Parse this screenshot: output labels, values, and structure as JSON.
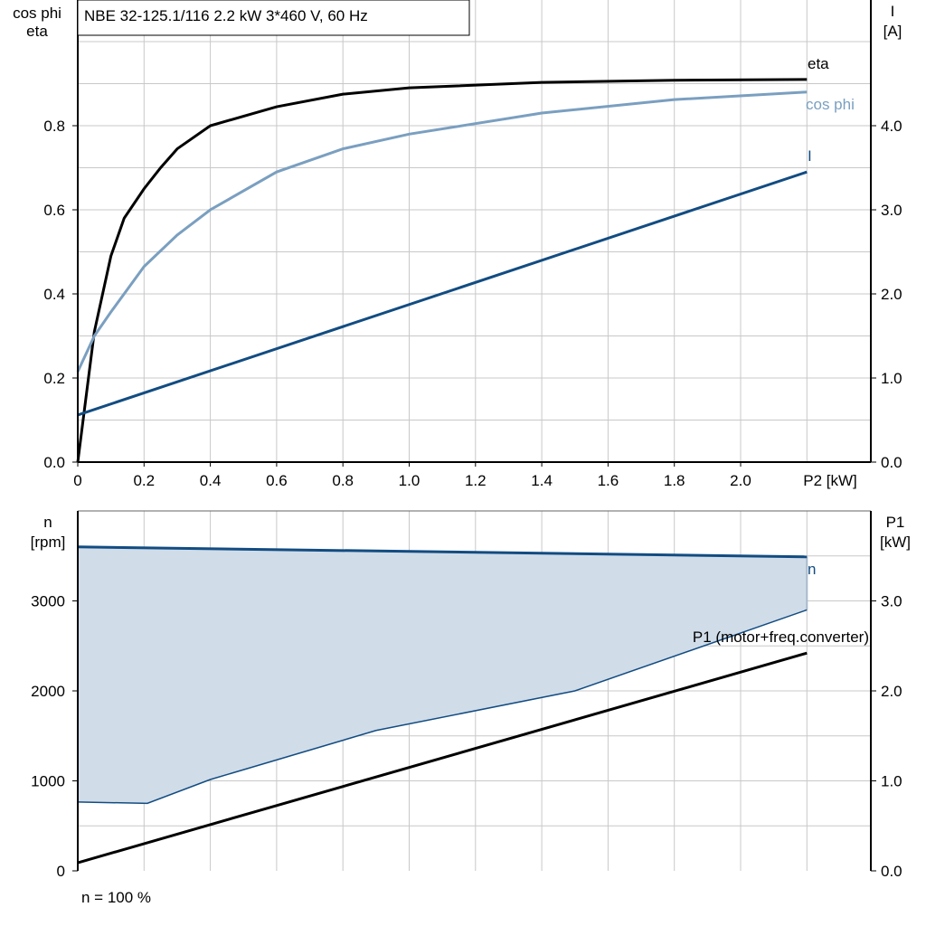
{
  "chart_data": [
    {
      "type": "line",
      "title": "NBE 32-125.1/116   2.2 kW   3*460 V, 60 Hz",
      "xlabel": "P2 [kW]",
      "ylabel_left": [
        "cos phi",
        "eta"
      ],
      "ylabel_right": [
        "I",
        "[A]"
      ],
      "xlim": [
        0,
        2.4
      ],
      "ylim_left": [
        0,
        1.1
      ],
      "ylim_right": [
        0,
        5.5
      ],
      "x_ticks": [
        "0",
        "0.2",
        "0.4",
        "0.6",
        "0.8",
        "1.0",
        "1.2",
        "1.4",
        "1.6",
        "1.8",
        "2.0"
      ],
      "y_ticks_left": [
        "0.0",
        "0.2",
        "0.4",
        "0.6",
        "0.8"
      ],
      "y_ticks_right": [
        "0.0",
        "1.0",
        "2.0",
        "3.0",
        "4.0"
      ],
      "grid": true,
      "series": [
        {
          "name": "eta",
          "axis": "left",
          "color": "#000000",
          "x": [
            0,
            0.05,
            0.1,
            0.14,
            0.2,
            0.25,
            0.3,
            0.4,
            0.6,
            0.8,
            1.0,
            1.4,
            1.8,
            2.2
          ],
          "y": [
            0,
            0.31,
            0.49,
            0.58,
            0.65,
            0.7,
            0.745,
            0.8,
            0.845,
            0.875,
            0.89,
            0.903,
            0.908,
            0.91
          ]
        },
        {
          "name": "cos phi",
          "axis": "left",
          "color": "#7a9fc0",
          "x": [
            0,
            0.05,
            0.1,
            0.2,
            0.3,
            0.4,
            0.6,
            0.8,
            1.0,
            1.4,
            1.8,
            2.2
          ],
          "y": [
            0.215,
            0.3,
            0.357,
            0.465,
            0.54,
            0.6,
            0.69,
            0.745,
            0.78,
            0.83,
            0.862,
            0.88
          ]
        },
        {
          "name": "I",
          "axis": "right",
          "color": "#124c82",
          "x": [
            0,
            2.2
          ],
          "y": [
            0.56,
            3.45
          ]
        }
      ]
    },
    {
      "type": "line",
      "ylabel_left": [
        "n",
        "[rpm]"
      ],
      "ylabel_right": [
        "P1",
        "[kW]"
      ],
      "xlim": [
        0,
        2.4
      ],
      "ylim_left": [
        0,
        4000
      ],
      "ylim_right": [
        0,
        4.0
      ],
      "y_ticks_left": [
        "0",
        "1000",
        "2000",
        "3000"
      ],
      "y_ticks_right": [
        "0.0",
        "1.0",
        "2.0",
        "3.0"
      ],
      "grid": true,
      "footnote": "n = 100 %",
      "series": [
        {
          "name": "n",
          "axis": "left",
          "color": "#124c82",
          "x": [
            0,
            2.2
          ],
          "y": [
            3600,
            3490
          ]
        },
        {
          "axis": "left",
          "role": "n-lower-limit",
          "color": "#124c82",
          "x": [
            0,
            0.21,
            0.4,
            0.9,
            1.5,
            2.2
          ],
          "y": [
            765,
            750,
            1015,
            1560,
            2000,
            2900
          ]
        },
        {
          "name": "P1 (motor+freq.converter)",
          "axis": "right",
          "color": "#000000",
          "x": [
            0,
            2.2
          ],
          "y": [
            0.09,
            2.42
          ]
        }
      ],
      "fill_color": "#d0dce8"
    }
  ]
}
